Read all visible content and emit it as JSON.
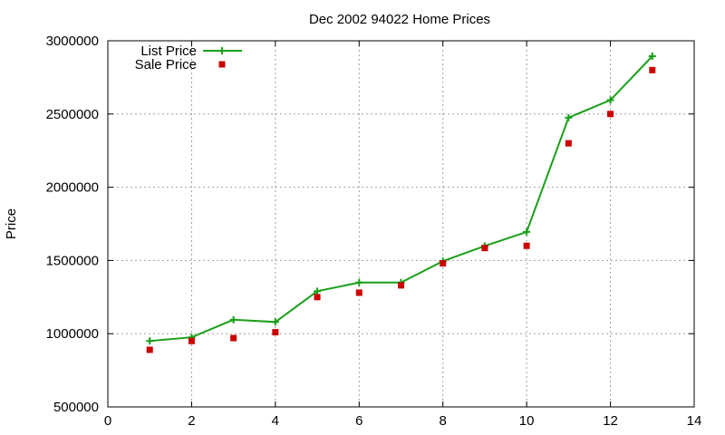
{
  "chart_data": {
    "type": "line",
    "title": "Dec 2002 94022 Home Prices",
    "xlabel": "",
    "ylabel": "Price",
    "xlim": [
      0,
      14
    ],
    "ylim": [
      500000,
      3000000
    ],
    "xticks": [
      0,
      2,
      4,
      6,
      8,
      10,
      12,
      14
    ],
    "yticks": [
      500000,
      1000000,
      1500000,
      2000000,
      2500000,
      3000000
    ],
    "grid": true,
    "legend_position": "top-left",
    "series": [
      {
        "name": "List Price",
        "style": "line-with-plus-markers",
        "color": "#1aa01a",
        "x": [
          1,
          2,
          3,
          4,
          5,
          6,
          7,
          8,
          9,
          10,
          11,
          12,
          13
        ],
        "values": [
          950000,
          975000,
          1095000,
          1080000,
          1290000,
          1349000,
          1349000,
          1495000,
          1599000,
          1695000,
          2475000,
          2595000,
          2895000
        ]
      },
      {
        "name": "Sale Price",
        "style": "square-markers",
        "color": "#cc0000",
        "x": [
          1,
          2,
          3,
          4,
          5,
          6,
          7,
          8,
          9,
          10,
          11,
          12,
          13
        ],
        "values": [
          890000,
          950000,
          970000,
          1010000,
          1250000,
          1280000,
          1330000,
          1480000,
          1585000,
          1600000,
          2300000,
          2500000,
          2800000
        ]
      }
    ]
  }
}
